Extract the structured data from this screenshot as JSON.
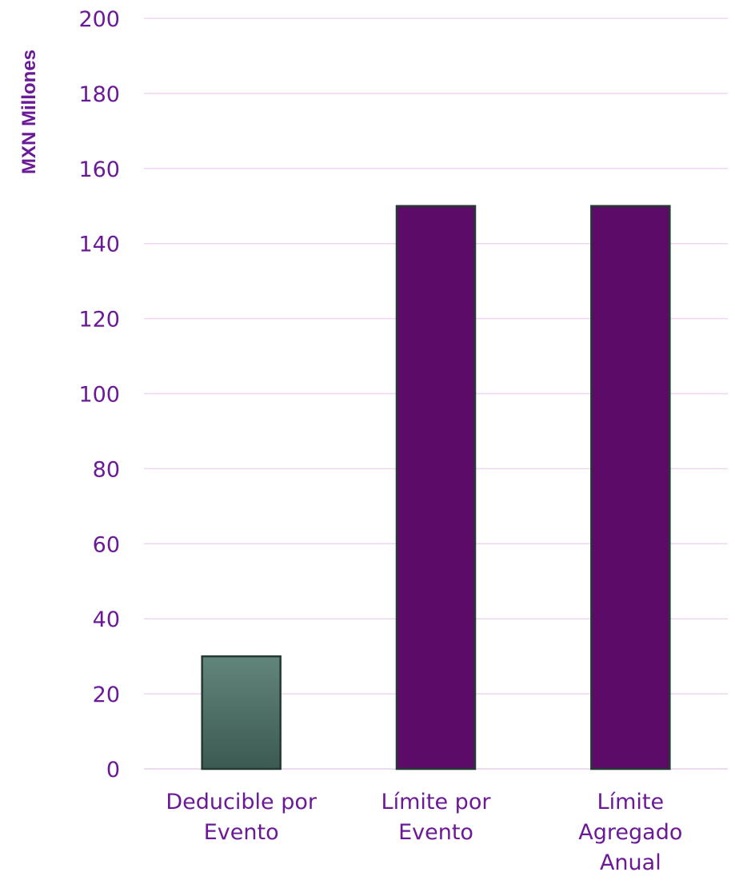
{
  "chart_data": {
    "type": "bar",
    "title": "",
    "xlabel": "",
    "ylabel": "MXN Millones",
    "ylim": [
      0,
      200
    ],
    "yticks": [
      0,
      20,
      40,
      60,
      80,
      100,
      120,
      140,
      160,
      180,
      200
    ],
    "grid": true,
    "legend": "none",
    "categories": [
      [
        "Deducible por",
        "Evento"
      ],
      [
        "Límite por",
        "Evento"
      ],
      [
        "Límite",
        "Agregado",
        "Anual"
      ]
    ],
    "values": [
      30,
      150,
      150
    ],
    "colors": [
      "#4d7168",
      "#5c0b68",
      "#5c0b68"
    ],
    "bar_border_color": "#253a33",
    "text_color": "#6a1a96"
  }
}
